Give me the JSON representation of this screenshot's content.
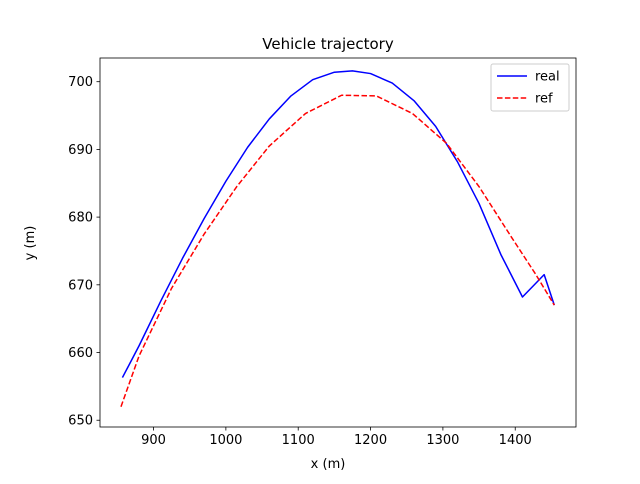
{
  "chart_data": {
    "type": "line",
    "title": "Vehicle trajectory",
    "xlabel": "x (m)",
    "ylabel": "y (m)",
    "xlim": [
      826,
      1484
    ],
    "ylim": [
      649,
      703.5
    ],
    "xticks": [
      900,
      1000,
      1100,
      1200,
      1300,
      1400
    ],
    "yticks": [
      650,
      660,
      670,
      680,
      690,
      700
    ],
    "grid": false,
    "legend_position": "top-right",
    "series": [
      {
        "name": "real",
        "color": "#0000ff",
        "style": "solid",
        "x": [
          857,
          880,
          910,
          940,
          970,
          1000,
          1030,
          1060,
          1090,
          1120,
          1150,
          1175,
          1200,
          1230,
          1260,
          1290,
          1320,
          1350,
          1380,
          1410,
          1440,
          1454
        ],
        "y": [
          656.3,
          661.0,
          667.6,
          673.9,
          679.8,
          685.3,
          690.3,
          694.5,
          697.9,
          700.3,
          701.4,
          701.6,
          701.2,
          699.8,
          697.2,
          693.4,
          688.2,
          682.0,
          674.5,
          668.2,
          671.5,
          667.0
        ]
      },
      {
        "name": "ref",
        "color": "#ff0000",
        "style": "dashed",
        "x": [
          855,
          880,
          925,
          970,
          1015,
          1060,
          1110,
          1160,
          1208,
          1258,
          1305,
          1350,
          1395,
          1428,
          1454
        ],
        "y": [
          652.0,
          659.5,
          669.5,
          677.5,
          684.5,
          690.5,
          695.3,
          698.0,
          697.9,
          695.3,
          690.9,
          684.5,
          677.0,
          671.6,
          667.0
        ]
      }
    ]
  }
}
